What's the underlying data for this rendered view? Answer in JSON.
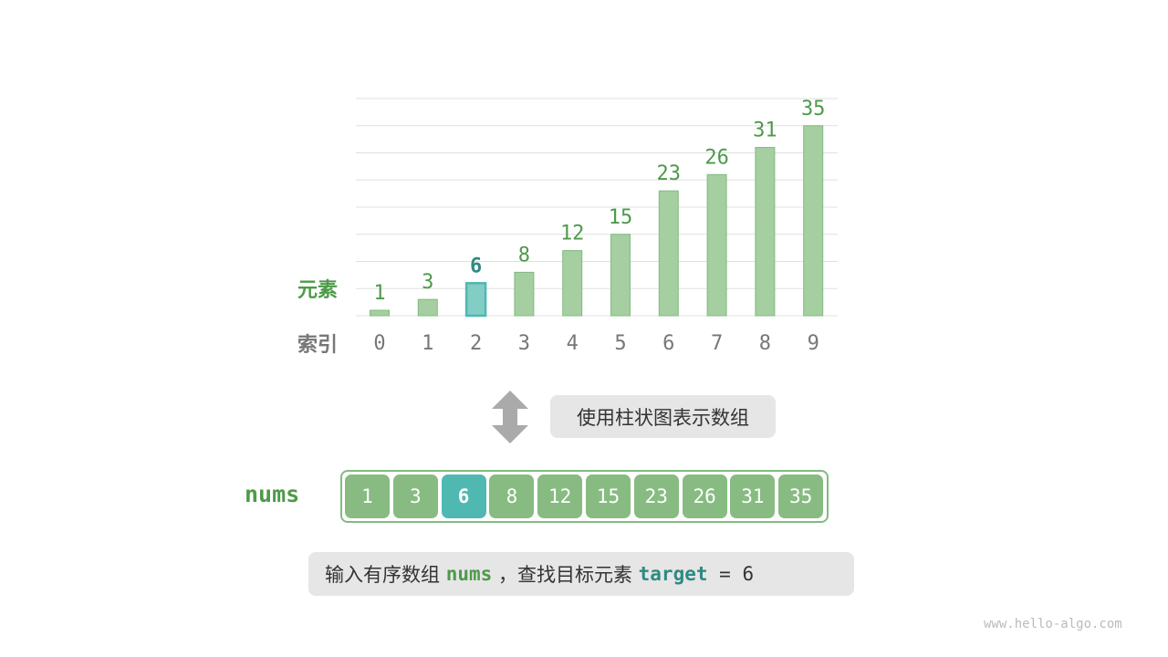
{
  "labels": {
    "elements": "元素",
    "indices": "索引",
    "array_name": "nums"
  },
  "caption_top": "使用柱状图表示数组",
  "caption_bottom": {
    "prefix": "输入有序数组",
    "nums": "nums",
    "middle": "，查找目标元素",
    "target": "target",
    "equals": "=",
    "value": "6"
  },
  "watermark": "www.hello-algo.com",
  "chart_data": {
    "type": "bar",
    "categories": [
      "0",
      "1",
      "2",
      "3",
      "4",
      "5",
      "6",
      "7",
      "8",
      "9"
    ],
    "values": [
      1,
      3,
      6,
      8,
      12,
      15,
      23,
      26,
      31,
      35
    ],
    "highlight_index": 2,
    "ylim": [
      0,
      40
    ],
    "grid": true,
    "colors": {
      "bar": "#a5cea1",
      "bar_edge": "#82bb80",
      "highlight": "#82cdc4",
      "highlight_edge": "#4fb8b1",
      "label": "#4e9a4a",
      "highlight_label": "#2e8a82",
      "index": "#777777"
    }
  }
}
